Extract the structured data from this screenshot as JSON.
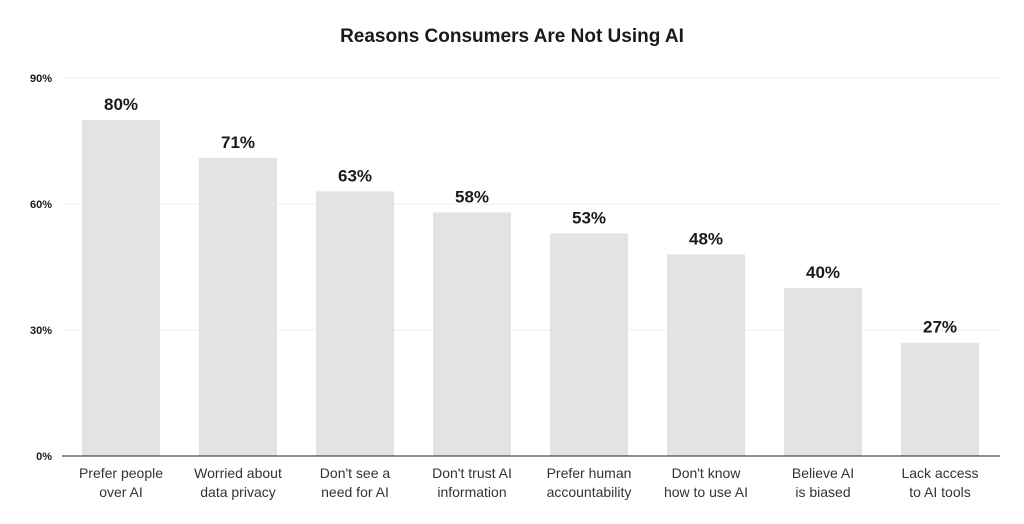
{
  "chart_data": {
    "type": "bar",
    "title": "Reasons Consumers Are Not Using AI",
    "xlabel": "",
    "ylabel": "",
    "ylim": [
      0,
      90
    ],
    "yticks": [
      0,
      30,
      60,
      90
    ],
    "ytick_labels": [
      "0%",
      "30%",
      "60%",
      "90%"
    ],
    "grid": true,
    "legend": "none",
    "categories": [
      [
        "Prefer people",
        "over AI"
      ],
      [
        "Worried about",
        "data privacy"
      ],
      [
        "Don't see a",
        "need for AI"
      ],
      [
        "Don't trust AI",
        "information"
      ],
      [
        "Prefer human",
        "accountability"
      ],
      [
        "Don't know",
        "how to use AI"
      ],
      [
        "Believe AI",
        "is biased"
      ],
      [
        "Lack access",
        "to AI tools"
      ]
    ],
    "values": [
      80,
      71,
      63,
      58,
      53,
      48,
      40,
      27
    ],
    "value_labels": [
      "80%",
      "71%",
      "63%",
      "58%",
      "53%",
      "48%",
      "40%",
      "27%"
    ],
    "bar_color": "#e3e3e3"
  }
}
